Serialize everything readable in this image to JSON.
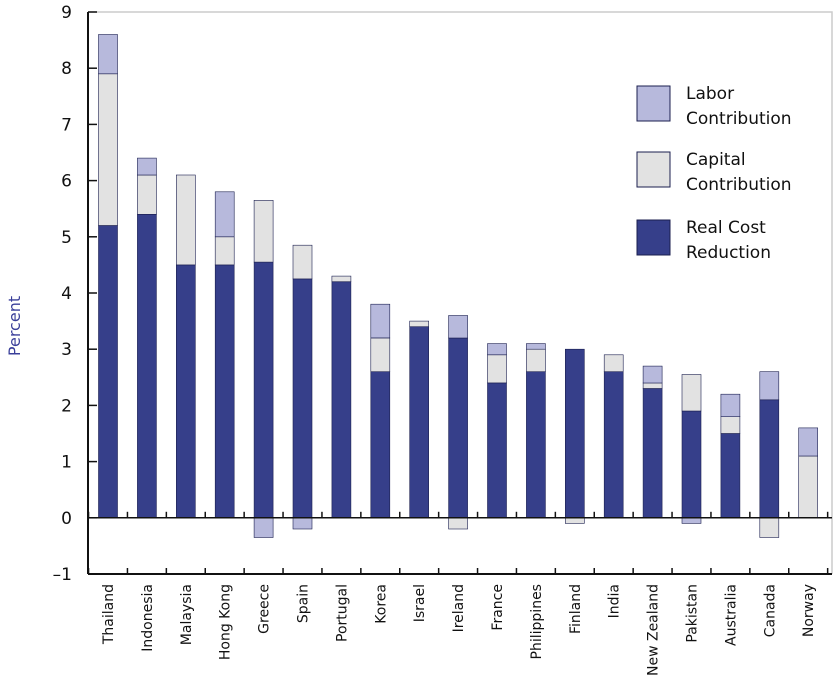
{
  "chart_data": {
    "type": "bar",
    "stacked": true,
    "title": "",
    "xlabel": "",
    "ylabel": "Percent",
    "ylim": [
      -1,
      9
    ],
    "yticks": [
      "9",
      "8",
      "7",
      "6",
      "5",
      "4",
      "3",
      "2",
      "1",
      "0",
      "–1"
    ],
    "grid": false,
    "legend_position": "top-right",
    "categories": [
      "Thailand",
      "Indonesia",
      "Malaysia",
      "Hong Kong",
      "Greece",
      "Spain",
      "Portugal",
      "Korea",
      "Israel",
      "Ireland",
      "France",
      "Philippines",
      "Finland",
      "India",
      "New Zealand",
      "Pakistan",
      "Australia",
      "Canada",
      "Norway"
    ],
    "series": [
      {
        "name": "Real Cost Reduction",
        "color": "#363f8a",
        "values": [
          5.2,
          5.4,
          4.5,
          4.5,
          4.55,
          4.25,
          4.2,
          2.6,
          3.4,
          3.2,
          2.4,
          2.6,
          3.0,
          2.6,
          2.3,
          1.9,
          1.5,
          2.1,
          0.0
        ]
      },
      {
        "name": "Capital Contribution",
        "color": "#e2e2e2",
        "values": [
          2.7,
          0.7,
          1.6,
          0.5,
          1.1,
          0.6,
          0.1,
          0.6,
          0.1,
          -0.2,
          0.5,
          0.4,
          -0.1,
          0.3,
          0.1,
          0.65,
          0.3,
          -0.35,
          1.1
        ]
      },
      {
        "name": "Labor Contribution",
        "color": "#b7b9dc",
        "values": [
          0.7,
          0.3,
          0.0,
          0.8,
          -0.35,
          -0.2,
          0.0,
          0.6,
          0.0,
          0.4,
          0.2,
          0.1,
          0.0,
          0.0,
          0.3,
          -0.1,
          0.4,
          0.5,
          0.5
        ]
      }
    ],
    "legend_label_lines": [
      [
        "Labor",
        "Contribution"
      ],
      [
        "Capital",
        "Contribution"
      ],
      [
        "Real Cost",
        "Reduction"
      ]
    ],
    "ylabel_color": "#3a3f9a",
    "axis_color": "#111111",
    "frame_color": "#cccccc"
  }
}
